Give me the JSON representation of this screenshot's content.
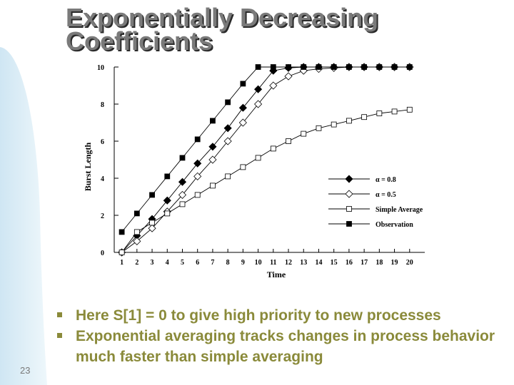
{
  "slide": {
    "title_line1": "Exponentially Decreasing",
    "title_line2": "Coefficients",
    "number": "23"
  },
  "bullets": [
    "Here S[1] = 0 to give high priority to new processes",
    "Exponential averaging tracks changes in process behavior much faster than simple averaging"
  ],
  "colors": {
    "text_accent": "#8a8a3a",
    "title_gray": "#7a7a7a",
    "background_arc": "#d7ecf6"
  },
  "chart_data": {
    "type": "line",
    "title": "",
    "xlabel": "Time",
    "ylabel": "Burst Length",
    "x": [
      1,
      2,
      3,
      4,
      5,
      6,
      7,
      8,
      9,
      10,
      11,
      12,
      13,
      14,
      15,
      16,
      17,
      18,
      19,
      20
    ],
    "xlim": [
      0.5,
      21
    ],
    "ylim": [
      0,
      10
    ],
    "yticks": [
      0,
      2,
      4,
      6,
      8,
      10
    ],
    "legend_position": "lower-right",
    "series": [
      {
        "name": "α = 0.8",
        "marker": "filled-diamond",
        "values": [
          0,
          0.9,
          1.8,
          2.8,
          3.8,
          4.8,
          5.7,
          6.7,
          7.8,
          8.8,
          9.8,
          9.95,
          10,
          10,
          10,
          10,
          10,
          10,
          10,
          10
        ]
      },
      {
        "name": "α = 0.5",
        "marker": "open-diamond",
        "values": [
          0,
          0.6,
          1.3,
          2.2,
          3.1,
          4.1,
          5.0,
          6.0,
          7.0,
          8.0,
          9.0,
          9.5,
          9.8,
          9.9,
          9.95,
          10,
          10,
          10,
          10,
          10
        ]
      },
      {
        "name": "Simple Average",
        "marker": "open-square",
        "values": [
          0,
          1.1,
          1.6,
          2.1,
          2.6,
          3.1,
          3.6,
          4.1,
          4.6,
          5.1,
          5.6,
          6.0,
          6.4,
          6.7,
          6.9,
          7.1,
          7.3,
          7.5,
          7.6,
          7.7
        ]
      },
      {
        "name": "Observation",
        "marker": "filled-square",
        "values": [
          1.1,
          2.1,
          3.1,
          4.1,
          5.1,
          6.1,
          7.1,
          8.1,
          9.1,
          10,
          10,
          10,
          10,
          10,
          10,
          10,
          10,
          10,
          10,
          10
        ]
      }
    ]
  }
}
